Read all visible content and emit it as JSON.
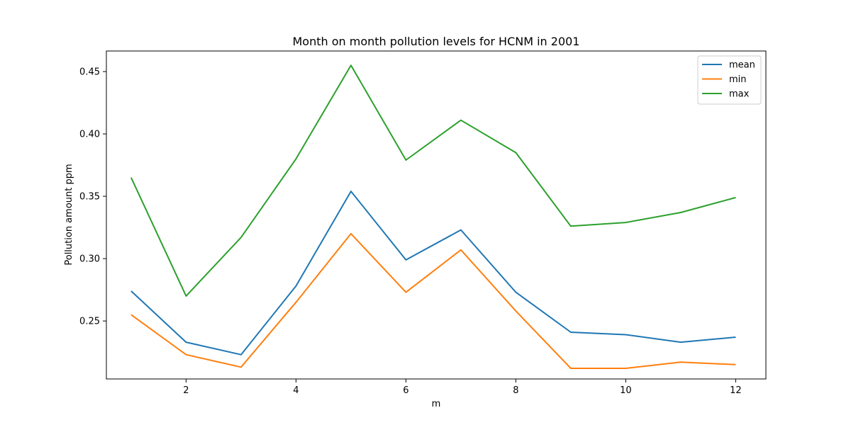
{
  "chart_data": {
    "type": "line",
    "title": "Month on month pollution levels for HCNM in 2001",
    "xlabel": "m",
    "ylabel": "Pollution amount ppm",
    "x": [
      1,
      2,
      3,
      4,
      5,
      6,
      7,
      8,
      9,
      10,
      11,
      12
    ],
    "xlim": [
      0.55,
      12.55
    ],
    "ylim": [
      0.2035,
      0.4665
    ],
    "x_ticks": [
      2,
      4,
      6,
      8,
      10,
      12
    ],
    "y_ticks": [
      0.25,
      0.3,
      0.35,
      0.4,
      0.45
    ],
    "y_tick_labels": [
      "0.25",
      "0.30",
      "0.35",
      "0.40",
      "0.45"
    ],
    "grid": false,
    "legend_position": "top-right",
    "series": [
      {
        "name": "mean",
        "color": "#1f77b4",
        "values": [
          0.274,
          0.233,
          0.223,
          0.278,
          0.354,
          0.299,
          0.323,
          0.273,
          0.241,
          0.239,
          0.233,
          0.237
        ]
      },
      {
        "name": "min",
        "color": "#ff7f0e",
        "values": [
          0.255,
          0.223,
          0.213,
          0.265,
          0.32,
          0.273,
          0.307,
          0.258,
          0.212,
          0.212,
          0.217,
          0.215
        ]
      },
      {
        "name": "max",
        "color": "#2ca02c",
        "values": [
          0.365,
          0.27,
          0.317,
          0.38,
          0.455,
          0.379,
          0.411,
          0.385,
          0.326,
          0.329,
          0.337,
          0.349
        ]
      }
    ]
  }
}
